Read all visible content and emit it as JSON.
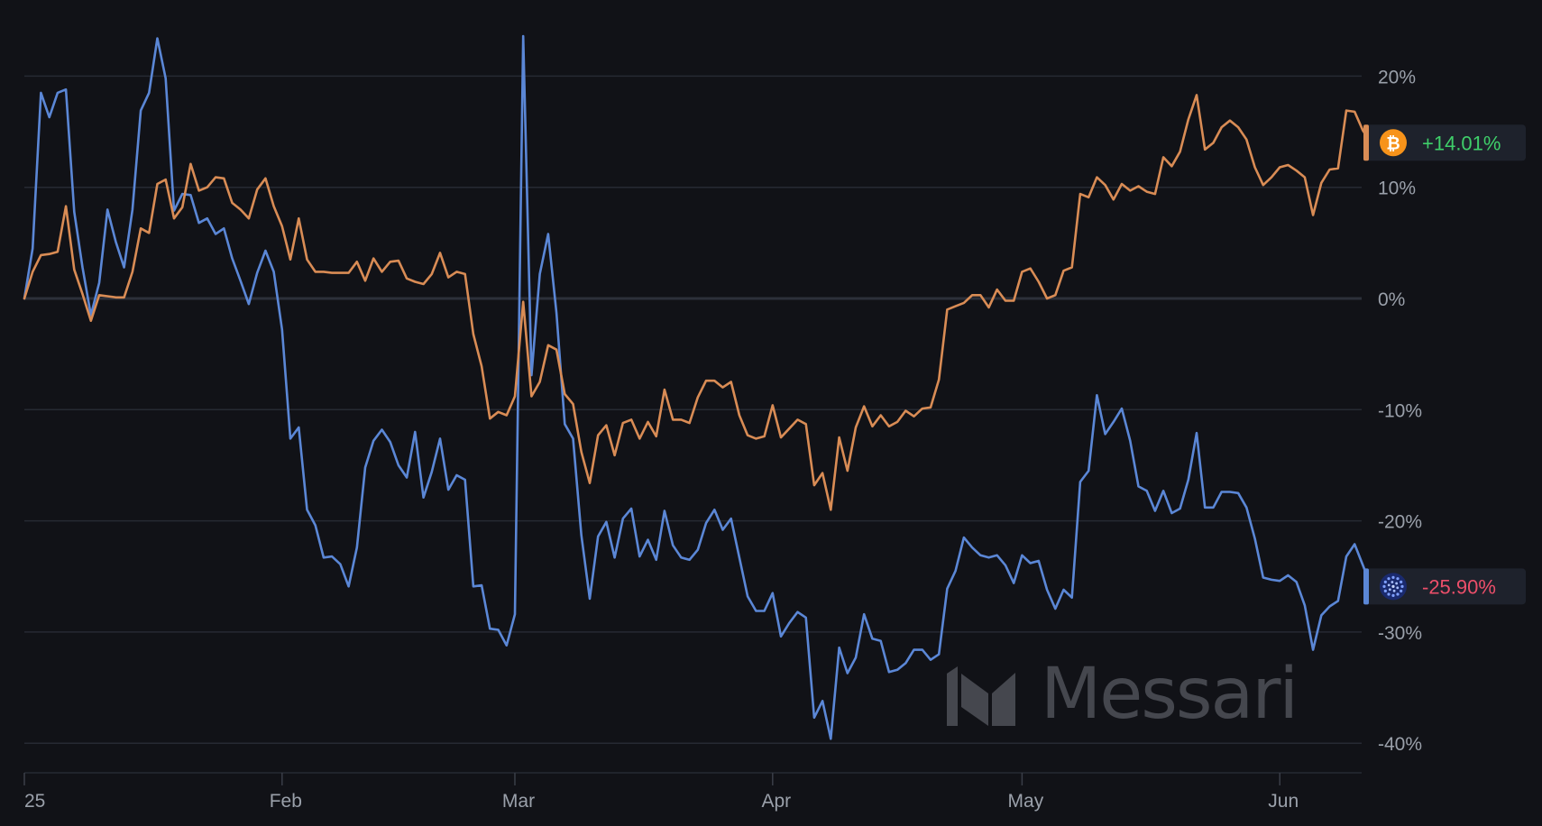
{
  "colors": {
    "background": "#111217",
    "grid": "#262a33",
    "zero_line": "#2c303a",
    "btc_line": "#d98c55",
    "ada_line": "#5b87d6",
    "positive": "#3fcf6a",
    "negative": "#ec4f6a",
    "badge_bg": "#1e222c",
    "watermark": "#4a4c53"
  },
  "watermark": {
    "text": "Messari",
    "icon": "messari-logo-icon"
  },
  "badges": [
    {
      "asset_icon": "bitcoin-icon",
      "value_text": "+14.01%",
      "value": 14.01,
      "color": "#3fcf6a",
      "accent": "#d98c55"
    },
    {
      "asset_icon": "cardano-icon",
      "value_text": "-25.90%",
      "value": -25.9,
      "color": "#ec4f6a",
      "accent": "#5b87d6"
    }
  ],
  "chart_data": {
    "type": "line",
    "title": "",
    "xlabel": "",
    "ylabel": "",
    "y_unit": "%",
    "ylim": [
      -43,
      25
    ],
    "x_range_days": [
      0,
      161
    ],
    "yticks": [
      {
        "value": 20,
        "label": "20%"
      },
      {
        "value": 10,
        "label": "10%"
      },
      {
        "value": 0,
        "label": "0%"
      },
      {
        "value": -10,
        "label": "-10%"
      },
      {
        "value": -20,
        "label": "-20%"
      },
      {
        "value": -30,
        "label": "-30%"
      },
      {
        "value": -40,
        "label": "-40%"
      }
    ],
    "xticks": [
      {
        "day": 0,
        "label": "25"
      },
      {
        "day": 31,
        "label": "Feb"
      },
      {
        "day": 59,
        "label": "Mar"
      },
      {
        "day": 90,
        "label": "Apr"
      },
      {
        "day": 120,
        "label": "May"
      },
      {
        "day": 151,
        "label": "Jun"
      }
    ],
    "grid": true,
    "series": [
      {
        "key": "btc",
        "color": "#d98c55",
        "values": [
          0.0,
          2.4,
          3.9,
          4.0,
          4.2,
          8.3,
          2.6,
          0.4,
          -2.0,
          0.3,
          0.2,
          0.1,
          0.1,
          2.4,
          6.3,
          5.9,
          10.3,
          10.7,
          7.2,
          8.2,
          12.1,
          9.7,
          10.0,
          10.9,
          10.8,
          8.6,
          8.0,
          7.2,
          9.8,
          10.8,
          8.3,
          6.5,
          3.5,
          7.2,
          3.5,
          2.4,
          2.4,
          2.3,
          2.3,
          2.3,
          3.3,
          1.6,
          3.6,
          2.4,
          3.3,
          3.4,
          1.8,
          1.5,
          1.3,
          2.2,
          4.1,
          1.9,
          2.4,
          2.2,
          -3.2,
          -6.1,
          -10.8,
          -10.2,
          -10.5,
          -8.8,
          -0.3,
          -8.8,
          -7.5,
          -4.2,
          -4.6,
          -8.6,
          -9.5,
          -13.8,
          -16.6,
          -12.3,
          -11.4,
          -14.1,
          -11.2,
          -10.9,
          -12.6,
          -11.1,
          -12.4,
          -8.2,
          -10.9,
          -10.9,
          -11.2,
          -8.9,
          -7.4,
          -7.4,
          -8.0,
          -7.5,
          -10.5,
          -12.3,
          -12.6,
          -12.4,
          -9.6,
          -12.5,
          -11.7,
          -10.9,
          -11.3,
          -16.8,
          -15.7,
          -19.0,
          -12.5,
          -15.5,
          -11.6,
          -9.7,
          -11.5,
          -10.5,
          -11.5,
          -11.1,
          -10.1,
          -10.6,
          -9.9,
          -9.8,
          -7.3,
          -1.0,
          -0.7,
          -0.4,
          0.3,
          0.3,
          -0.8,
          0.8,
          -0.2,
          -0.2,
          2.4,
          2.7,
          1.5,
          0.0,
          0.3,
          2.5,
          2.8,
          9.4,
          9.1,
          10.9,
          10.2,
          8.9,
          10.3,
          9.7,
          10.1,
          9.6,
          9.4,
          12.7,
          11.9,
          13.2,
          16.1,
          18.3,
          13.4,
          14.0,
          15.4,
          16.0,
          15.4,
          14.3,
          11.8,
          10.2,
          10.9,
          11.8,
          12.0,
          11.5,
          10.9,
          7.5,
          10.4,
          11.6,
          11.7,
          16.9,
          16.8,
          15.1,
          14.0
        ]
      },
      {
        "key": "ada",
        "color": "#5b87d6",
        "values": [
          0.0,
          4.5,
          18.5,
          16.3,
          18.5,
          18.8,
          7.8,
          2.8,
          -1.5,
          1.4,
          8.0,
          5.1,
          2.8,
          8.0,
          16.9,
          18.5,
          23.4,
          19.8,
          7.9,
          9.4,
          9.3,
          6.8,
          7.2,
          5.8,
          6.3,
          3.6,
          1.6,
          -0.5,
          2.3,
          4.3,
          2.4,
          -2.8,
          -12.6,
          -11.6,
          -19.0,
          -20.4,
          -23.3,
          -23.2,
          -23.9,
          -25.9,
          -22.4,
          -15.2,
          -12.8,
          -11.8,
          -12.9,
          -15.0,
          -16.1,
          -12.0,
          -17.9,
          -15.6,
          -12.6,
          -17.2,
          -15.9,
          -16.3,
          -25.9,
          -25.8,
          -29.7,
          -29.8,
          -31.2,
          -28.4,
          23.6,
          -6.9,
          2.2,
          5.8,
          -1.3,
          -11.3,
          -12.6,
          -21.3,
          -27.0,
          -21.4,
          -20.1,
          -23.3,
          -19.8,
          -18.9,
          -23.2,
          -21.7,
          -23.5,
          -19.1,
          -22.2,
          -23.3,
          -23.5,
          -22.6,
          -20.2,
          -19.0,
          -20.8,
          -19.8,
          -23.3,
          -26.8,
          -28.1,
          -28.1,
          -26.5,
          -30.4,
          -29.2,
          -28.2,
          -28.7,
          -37.7,
          -36.2,
          -39.6,
          -31.4,
          -33.7,
          -32.3,
          -28.4,
          -30.6,
          -30.8,
          -33.6,
          -33.4,
          -32.8,
          -31.6,
          -31.6,
          -32.5,
          -32.0,
          -26.1,
          -24.5,
          -21.5,
          -22.4,
          -23.1,
          -23.3,
          -23.1,
          -24.0,
          -25.6,
          -23.1,
          -23.8,
          -23.6,
          -26.2,
          -27.9,
          -26.2,
          -26.9,
          -16.5,
          -15.5,
          -8.7,
          -12.2,
          -11.1,
          -9.9,
          -12.8,
          -16.9,
          -17.3,
          -19.1,
          -17.3,
          -19.3,
          -18.9,
          -16.3,
          -12.1,
          -18.8,
          -18.8,
          -17.4,
          -17.4,
          -17.5,
          -18.8,
          -21.6,
          -25.1,
          -25.3,
          -25.4,
          -24.9,
          -25.5,
          -27.6,
          -31.6,
          -28.5,
          -27.7,
          -27.2,
          -23.2,
          -22.1,
          -24.0,
          -25.9
        ]
      }
    ]
  }
}
